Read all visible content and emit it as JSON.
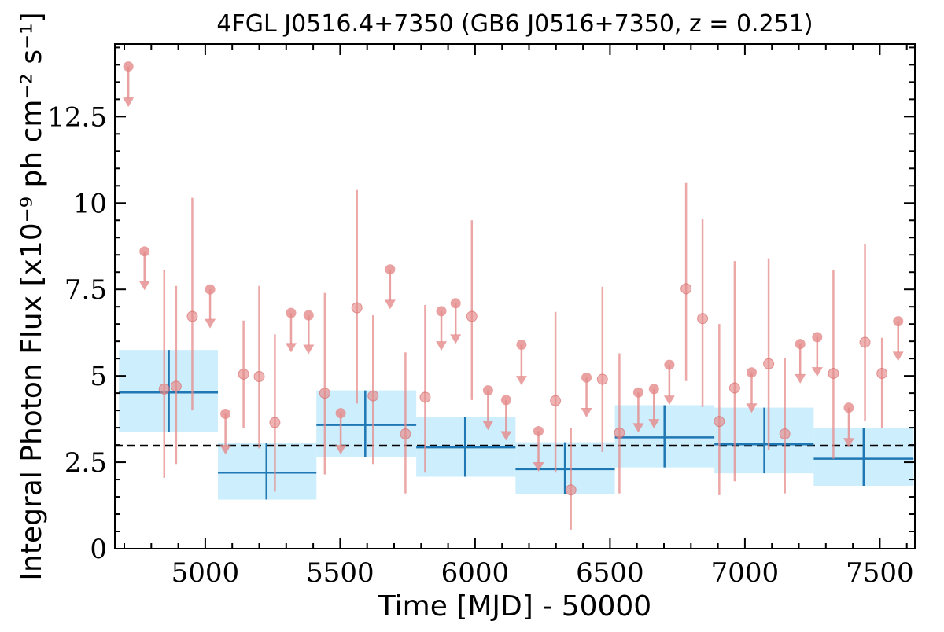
{
  "chart_data": {
    "type": "scatter",
    "title": "4FGL J0516.4+7350 (GB6 J0516+7350, z = 0.251)",
    "xlabel": "Time [MJD] - 50000",
    "ylabel": "Integral Photon Flux [x10⁻⁹ ph cm⁻² s⁻¹]",
    "xlim": [
      4665,
      7630
    ],
    "ylim": [
      0,
      14.6
    ],
    "xticks": [
      5000,
      5500,
      6000,
      6500,
      7000,
      7500
    ],
    "xtick_labels": [
      "5000",
      "5500",
      "6000",
      "6500",
      "7000",
      "7500"
    ],
    "yticks": [
      0,
      2.5,
      5,
      7.5,
      10,
      12.5
    ],
    "ytick_labels": [
      "0",
      "2.5",
      "5",
      "7.5",
      "10",
      "12.5"
    ],
    "grid": false,
    "reference_level": 2.98,
    "colors": {
      "short_bin_points": "#e58a8a",
      "long_bin_line": "#1f77b4",
      "long_bin_box": "#cdeefc",
      "reference_line": "#000000"
    },
    "short_bin_points": [
      {
        "x": 4848,
        "y": 4.62,
        "ylo": 2.05,
        "yhi": 8.05
      },
      {
        "x": 4892,
        "y": 4.7,
        "ylo": 2.45,
        "yhi": 7.6
      },
      {
        "x": 4952,
        "y": 6.72,
        "ylo": 4.0,
        "yhi": 10.15
      },
      {
        "x": 5142,
        "y": 5.05,
        "ylo": 3.5,
        "yhi": 6.6
      },
      {
        "x": 5200,
        "y": 4.98,
        "ylo": 2.9,
        "yhi": 7.6
      },
      {
        "x": 5258,
        "y": 3.65,
        "ylo": 1.65,
        "yhi": 6.2
      },
      {
        "x": 5443,
        "y": 4.5,
        "ylo": 2.15,
        "yhi": 7.4
      },
      {
        "x": 5562,
        "y": 6.97,
        "ylo": 4.2,
        "yhi": 10.38
      },
      {
        "x": 5622,
        "y": 4.42,
        "ylo": 2.45,
        "yhi": 6.75
      },
      {
        "x": 5742,
        "y": 3.32,
        "ylo": 1.6,
        "yhi": 5.68
      },
      {
        "x": 5815,
        "y": 4.38,
        "ylo": 2.2,
        "yhi": 7.05
      },
      {
        "x": 5988,
        "y": 6.72,
        "ylo": 4.3,
        "yhi": 9.5
      },
      {
        "x": 6298,
        "y": 4.28,
        "ylo": 2.2,
        "yhi": 6.85
      },
      {
        "x": 6355,
        "y": 1.7,
        "ylo": 0.55,
        "yhi": 3.5
      },
      {
        "x": 6472,
        "y": 4.9,
        "ylo": 2.8,
        "yhi": 7.58
      },
      {
        "x": 6535,
        "y": 3.35,
        "ylo": 1.6,
        "yhi": 5.65
      },
      {
        "x": 6782,
        "y": 7.52,
        "ylo": 4.85,
        "yhi": 10.58
      },
      {
        "x": 6843,
        "y": 6.66,
        "ylo": 4.1,
        "yhi": 9.55
      },
      {
        "x": 6905,
        "y": 3.68,
        "ylo": 1.55,
        "yhi": 6.5
      },
      {
        "x": 6962,
        "y": 4.65,
        "ylo": 1.95,
        "yhi": 8.32
      },
      {
        "x": 7088,
        "y": 5.35,
        "ylo": 2.85,
        "yhi": 8.4
      },
      {
        "x": 7148,
        "y": 3.32,
        "ylo": 1.6,
        "yhi": 5.52
      },
      {
        "x": 7328,
        "y": 5.07,
        "ylo": 2.6,
        "yhi": 8.05
      },
      {
        "x": 7445,
        "y": 5.97,
        "ylo": 3.7,
        "yhi": 8.8
      },
      {
        "x": 7508,
        "y": 5.07,
        "ylo": 3.5,
        "yhi": 6.1
      }
    ],
    "short_bin_upper_limits": [
      {
        "x": 4715,
        "y": 13.95,
        "arrow_to": 12.8
      },
      {
        "x": 4775,
        "y": 8.6,
        "arrow_to": 7.5
      },
      {
        "x": 5018,
        "y": 7.5,
        "arrow_to": 6.4
      },
      {
        "x": 5075,
        "y": 3.9,
        "arrow_to": 2.75
      },
      {
        "x": 5318,
        "y": 6.82,
        "arrow_to": 5.7
      },
      {
        "x": 5383,
        "y": 6.75,
        "arrow_to": 5.65
      },
      {
        "x": 5502,
        "y": 3.92,
        "arrow_to": 2.75
      },
      {
        "x": 5685,
        "y": 8.08,
        "arrow_to": 6.95
      },
      {
        "x": 5875,
        "y": 6.87,
        "arrow_to": 5.75
      },
      {
        "x": 5928,
        "y": 7.1,
        "arrow_to": 5.95
      },
      {
        "x": 6048,
        "y": 4.58,
        "arrow_to": 3.45
      },
      {
        "x": 6115,
        "y": 4.3,
        "arrow_to": 3.15
      },
      {
        "x": 6172,
        "y": 5.9,
        "arrow_to": 4.75
      },
      {
        "x": 6235,
        "y": 3.4,
        "arrow_to": 2.25
      },
      {
        "x": 6413,
        "y": 4.95,
        "arrow_to": 3.82
      },
      {
        "x": 6605,
        "y": 4.52,
        "arrow_to": 3.38
      },
      {
        "x": 6663,
        "y": 4.62,
        "arrow_to": 3.5
      },
      {
        "x": 6720,
        "y": 5.32,
        "arrow_to": 4.18
      },
      {
        "x": 7025,
        "y": 5.1,
        "arrow_to": 3.95
      },
      {
        "x": 7205,
        "y": 5.92,
        "arrow_to": 4.8
      },
      {
        "x": 7268,
        "y": 6.12,
        "arrow_to": 5.0
      },
      {
        "x": 7385,
        "y": 4.08,
        "arrow_to": 2.95
      },
      {
        "x": 7568,
        "y": 6.58,
        "arrow_to": 5.45
      }
    ],
    "long_bins": [
      {
        "x0": 4680,
        "x1": 5047,
        "xc": 4865,
        "y": 4.52,
        "ylo": 3.38,
        "yhi": 5.75
      },
      {
        "x0": 5047,
        "x1": 5412,
        "xc": 5227,
        "y": 2.2,
        "ylo": 1.42,
        "yhi": 3.05
      },
      {
        "x0": 5412,
        "x1": 5782,
        "xc": 5593,
        "y": 3.58,
        "ylo": 2.65,
        "yhi": 4.58
      },
      {
        "x0": 5782,
        "x1": 6150,
        "xc": 5963,
        "y": 2.93,
        "ylo": 2.08,
        "yhi": 3.8
      },
      {
        "x0": 6150,
        "x1": 6518,
        "xc": 6333,
        "y": 2.3,
        "ylo": 1.58,
        "yhi": 3.08
      },
      {
        "x0": 6518,
        "x1": 6887,
        "xc": 6702,
        "y": 3.22,
        "ylo": 2.35,
        "yhi": 4.15
      },
      {
        "x0": 6887,
        "x1": 7255,
        "xc": 7072,
        "y": 3.02,
        "ylo": 2.18,
        "yhi": 4.08
      },
      {
        "x0": 7255,
        "x1": 7625,
        "xc": 7440,
        "y": 2.6,
        "ylo": 1.82,
        "yhi": 3.48
      }
    ]
  }
}
